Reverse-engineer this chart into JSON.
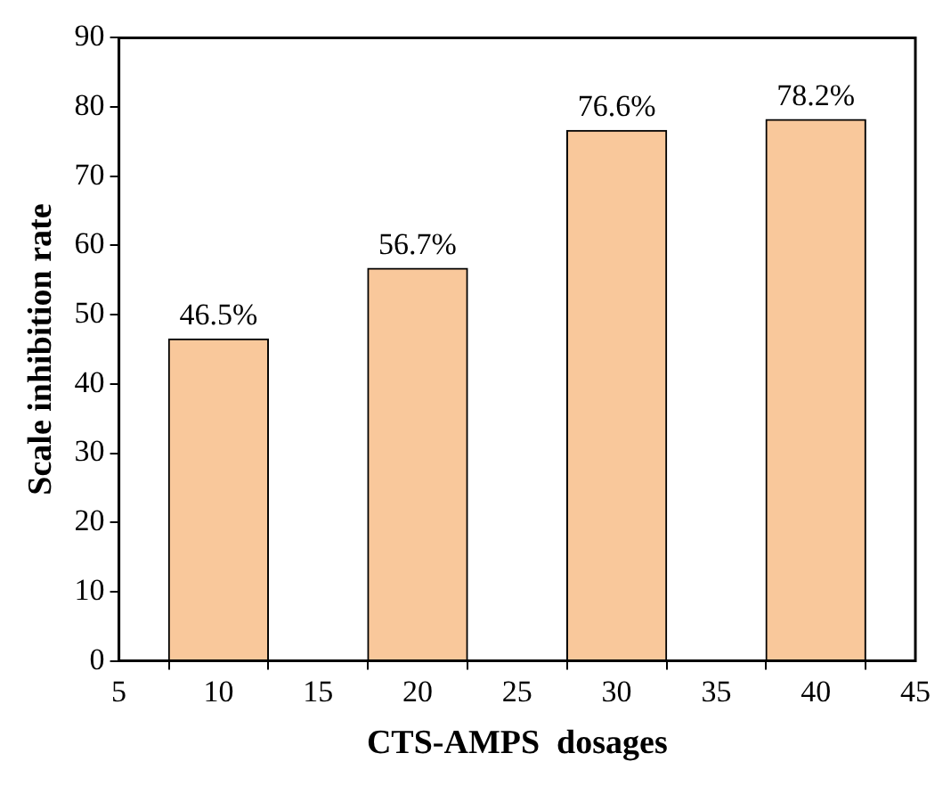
{
  "chart_data": {
    "type": "bar",
    "xlabel": "CTS-AMPS  dosages",
    "ylabel": "Scale inhibition rate",
    "x": [
      10,
      20,
      30,
      40
    ],
    "values": [
      46.5,
      56.7,
      76.6,
      78.2
    ],
    "value_labels": [
      "46.5%",
      "56.7%",
      "76.6%",
      "78.2%"
    ],
    "color": "#f9c89b",
    "xlim": [
      5,
      45
    ],
    "xticks": [
      5,
      10,
      15,
      20,
      25,
      30,
      35,
      40,
      45
    ],
    "ylim": [
      0,
      90
    ],
    "yticks": [
      0,
      10,
      20,
      30,
      40,
      50,
      60,
      70,
      80,
      90
    ]
  }
}
